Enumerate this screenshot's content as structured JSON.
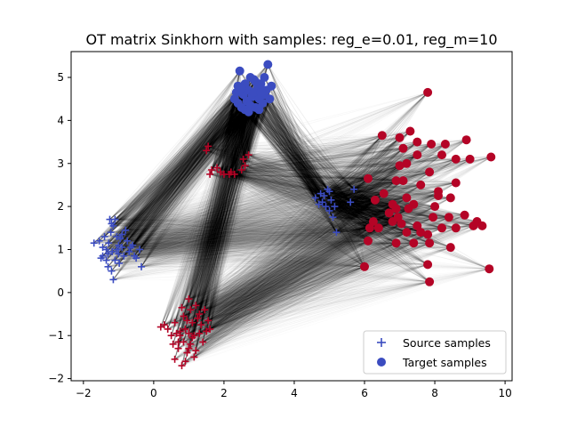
{
  "chart_data": {
    "type": "scatter",
    "title": "OT matrix Sinkhorn with samples: reg_e=0.01, reg_m=10",
    "xlabel": "",
    "ylabel": "",
    "xlim": [
      -2.35,
      10.2
    ],
    "ylim": [
      -2.05,
      5.6
    ],
    "xticks": [
      -2,
      0,
      2,
      4,
      6,
      8,
      10
    ],
    "yticks": [
      -2,
      -1,
      0,
      1,
      2,
      3,
      4,
      5
    ],
    "grid": false,
    "legend_position": "lower-right",
    "colors": {
      "blue": "#3b4cc0",
      "red": "#b40426",
      "lines": "#000000"
    },
    "series": [
      {
        "name": "Source samples",
        "marker": "plus",
        "points": [
          [
            -1.7,
            1.15
          ],
          [
            -1.55,
            1.2
          ],
          [
            -1.5,
            0.8
          ],
          [
            -1.45,
            1.05
          ],
          [
            -1.4,
            1.3
          ],
          [
            -1.35,
            1.0
          ],
          [
            -1.3,
            0.9
          ],
          [
            -1.28,
            1.15
          ],
          [
            -1.25,
            1.7
          ],
          [
            -1.2,
            1.6
          ],
          [
            -1.15,
            1.55
          ],
          [
            -1.1,
            1.7
          ],
          [
            -1.2,
            0.5
          ],
          [
            -1.15,
            0.3
          ],
          [
            -1.1,
            0.75
          ],
          [
            -1.05,
            1.3
          ],
          [
            -1.0,
            1.1
          ],
          [
            -1.0,
            0.9
          ],
          [
            -0.95,
            1.25
          ],
          [
            -0.9,
            1.05
          ],
          [
            -0.85,
            0.85
          ],
          [
            -0.8,
            1.45
          ],
          [
            -0.75,
            1.2
          ],
          [
            -0.7,
            0.95
          ],
          [
            -0.6,
            1.1
          ],
          [
            -0.55,
            0.85
          ],
          [
            -0.5,
            0.8
          ],
          [
            -0.4,
            1.0
          ],
          [
            -0.35,
            0.6
          ],
          [
            -1.3,
            0.6
          ],
          [
            -1.35,
            0.75
          ],
          [
            -1.05,
            1.0
          ],
          [
            -0.9,
            1.35
          ],
          [
            -1.18,
            0.95
          ],
          [
            -1.45,
            0.85
          ],
          [
            -0.65,
            1.05
          ],
          [
            -0.98,
            0.68
          ],
          [
            -1.22,
            1.4
          ],
          [
            4.7,
            2.05
          ],
          [
            4.75,
            2.3
          ],
          [
            4.8,
            2.1
          ],
          [
            4.85,
            2.25
          ],
          [
            4.9,
            2.0
          ],
          [
            4.95,
            2.4
          ],
          [
            5.0,
            1.9
          ],
          [
            5.05,
            2.15
          ],
          [
            5.1,
            1.75
          ],
          [
            5.15,
            2.0
          ],
          [
            5.2,
            1.4
          ],
          [
            5.6,
            2.1
          ],
          [
            5.7,
            2.4
          ],
          [
            4.6,
            2.2
          ],
          [
            5.0,
            2.35
          ],
          [
            1.5,
            3.3
          ],
          [
            1.55,
            3.4
          ],
          [
            1.6,
            2.75
          ],
          [
            1.8,
            2.9
          ],
          [
            1.9,
            2.8
          ],
          [
            2.0,
            2.75
          ],
          [
            2.15,
            2.75
          ],
          [
            2.3,
            2.75
          ],
          [
            2.5,
            2.85
          ],
          [
            2.55,
            3.1
          ],
          [
            2.6,
            2.95
          ],
          [
            2.7,
            3.2
          ],
          [
            1.65,
            2.85
          ],
          [
            2.2,
            2.8
          ],
          [
            0.2,
            -0.8
          ],
          [
            0.3,
            -0.75
          ],
          [
            0.4,
            -0.85
          ],
          [
            0.5,
            -1.0
          ],
          [
            0.55,
            -1.2
          ],
          [
            0.6,
            -1.55
          ],
          [
            0.65,
            -0.95
          ],
          [
            0.7,
            -1.3
          ],
          [
            0.75,
            -1.0
          ],
          [
            0.8,
            -1.7
          ],
          [
            0.85,
            -0.55
          ],
          [
            0.85,
            -1.15
          ],
          [
            0.9,
            -0.85
          ],
          [
            0.95,
            -1.4
          ],
          [
            1.0,
            -0.95
          ],
          [
            1.0,
            -0.15
          ],
          [
            1.05,
            -0.4
          ],
          [
            1.05,
            -1.2
          ],
          [
            1.1,
            -0.7
          ],
          [
            1.15,
            -1.0
          ],
          [
            1.2,
            -0.3
          ],
          [
            1.2,
            -1.35
          ],
          [
            1.25,
            -0.6
          ],
          [
            1.3,
            -0.95
          ],
          [
            1.35,
            -0.75
          ],
          [
            1.4,
            -1.15
          ],
          [
            1.5,
            -0.9
          ],
          [
            1.55,
            -0.65
          ],
          [
            1.6,
            -0.85
          ],
          [
            0.9,
            -1.6
          ],
          [
            0.75,
            -0.9
          ],
          [
            1.15,
            -1.5
          ],
          [
            0.95,
            -0.65
          ],
          [
            1.1,
            -1.05
          ],
          [
            1.3,
            -0.5
          ],
          [
            0.7,
            -1.15
          ],
          [
            1.45,
            -0.4
          ],
          [
            1.0,
            -1.3
          ],
          [
            0.6,
            -0.7
          ],
          [
            0.8,
            -0.35
          ]
        ]
      },
      {
        "name": "Target samples",
        "marker": "circle",
        "points": [
          [
            2.3,
            4.5
          ],
          [
            2.35,
            4.65
          ],
          [
            2.4,
            4.4
          ],
          [
            2.45,
            5.15
          ],
          [
            2.5,
            4.3
          ],
          [
            2.55,
            4.6
          ],
          [
            2.6,
            4.85
          ],
          [
            2.65,
            4.45
          ],
          [
            2.7,
            4.7
          ],
          [
            2.75,
            4.35
          ],
          [
            2.8,
            4.55
          ],
          [
            2.85,
            4.95
          ],
          [
            2.9,
            4.3
          ],
          [
            2.95,
            4.75
          ],
          [
            3.0,
            4.5
          ],
          [
            3.05,
            4.85
          ],
          [
            3.1,
            4.4
          ],
          [
            3.15,
            4.6
          ],
          [
            3.2,
            4.7
          ],
          [
            3.25,
            5.3
          ],
          [
            3.3,
            4.5
          ],
          [
            3.35,
            4.8
          ],
          [
            2.4,
            4.8
          ],
          [
            2.6,
            4.25
          ],
          [
            2.75,
            5.0
          ],
          [
            2.9,
            4.9
          ],
          [
            3.0,
            4.25
          ],
          [
            3.15,
            5.0
          ],
          [
            2.5,
            4.75
          ],
          [
            2.7,
            4.2
          ],
          [
            2.85,
            4.65
          ],
          [
            3.05,
            4.65
          ],
          [
            7.8,
            4.65
          ],
          [
            6.5,
            3.65
          ],
          [
            7.0,
            3.6
          ],
          [
            7.3,
            3.75
          ],
          [
            7.5,
            3.5
          ],
          [
            7.9,
            3.45
          ],
          [
            8.3,
            3.45
          ],
          [
            8.2,
            3.2
          ],
          [
            8.9,
            3.55
          ],
          [
            9.6,
            3.15
          ],
          [
            9.0,
            3.1
          ],
          [
            8.6,
            3.1
          ],
          [
            7.5,
            3.2
          ],
          [
            7.2,
            3.0
          ],
          [
            7.1,
            3.35
          ],
          [
            7.0,
            2.95
          ],
          [
            7.85,
            2.8
          ],
          [
            7.1,
            2.6
          ],
          [
            6.9,
            2.6
          ],
          [
            7.6,
            2.5
          ],
          [
            8.1,
            2.35
          ],
          [
            8.1,
            2.25
          ],
          [
            8.45,
            2.2
          ],
          [
            8.6,
            2.55
          ],
          [
            7.2,
            2.2
          ],
          [
            6.55,
            2.3
          ],
          [
            6.1,
            2.65
          ],
          [
            6.3,
            2.15
          ],
          [
            6.8,
            2.05
          ],
          [
            6.9,
            1.95
          ],
          [
            7.4,
            2.05
          ],
          [
            6.7,
            1.85
          ],
          [
            6.8,
            1.65
          ],
          [
            6.95,
            1.75
          ],
          [
            7.05,
            1.6
          ],
          [
            7.25,
            1.95
          ],
          [
            7.5,
            1.55
          ],
          [
            7.95,
            1.75
          ],
          [
            8.0,
            2.0
          ],
          [
            8.4,
            1.75
          ],
          [
            8.2,
            1.5
          ],
          [
            8.6,
            1.5
          ],
          [
            8.85,
            1.8
          ],
          [
            9.1,
            1.55
          ],
          [
            9.2,
            1.65
          ],
          [
            9.35,
            1.55
          ],
          [
            6.4,
            1.5
          ],
          [
            6.15,
            1.5
          ],
          [
            6.25,
            1.65
          ],
          [
            6.1,
            1.2
          ],
          [
            6.9,
            1.15
          ],
          [
            7.2,
            1.4
          ],
          [
            7.6,
            1.4
          ],
          [
            7.8,
            1.35
          ],
          [
            7.4,
            1.15
          ],
          [
            7.85,
            1.15
          ],
          [
            8.45,
            1.05
          ],
          [
            6.0,
            0.6
          ],
          [
            7.8,
            0.65
          ],
          [
            7.85,
            0.25
          ],
          [
            9.55,
            0.55
          ]
        ]
      }
    ],
    "legend": [
      "Source samples",
      "Target samples"
    ]
  }
}
